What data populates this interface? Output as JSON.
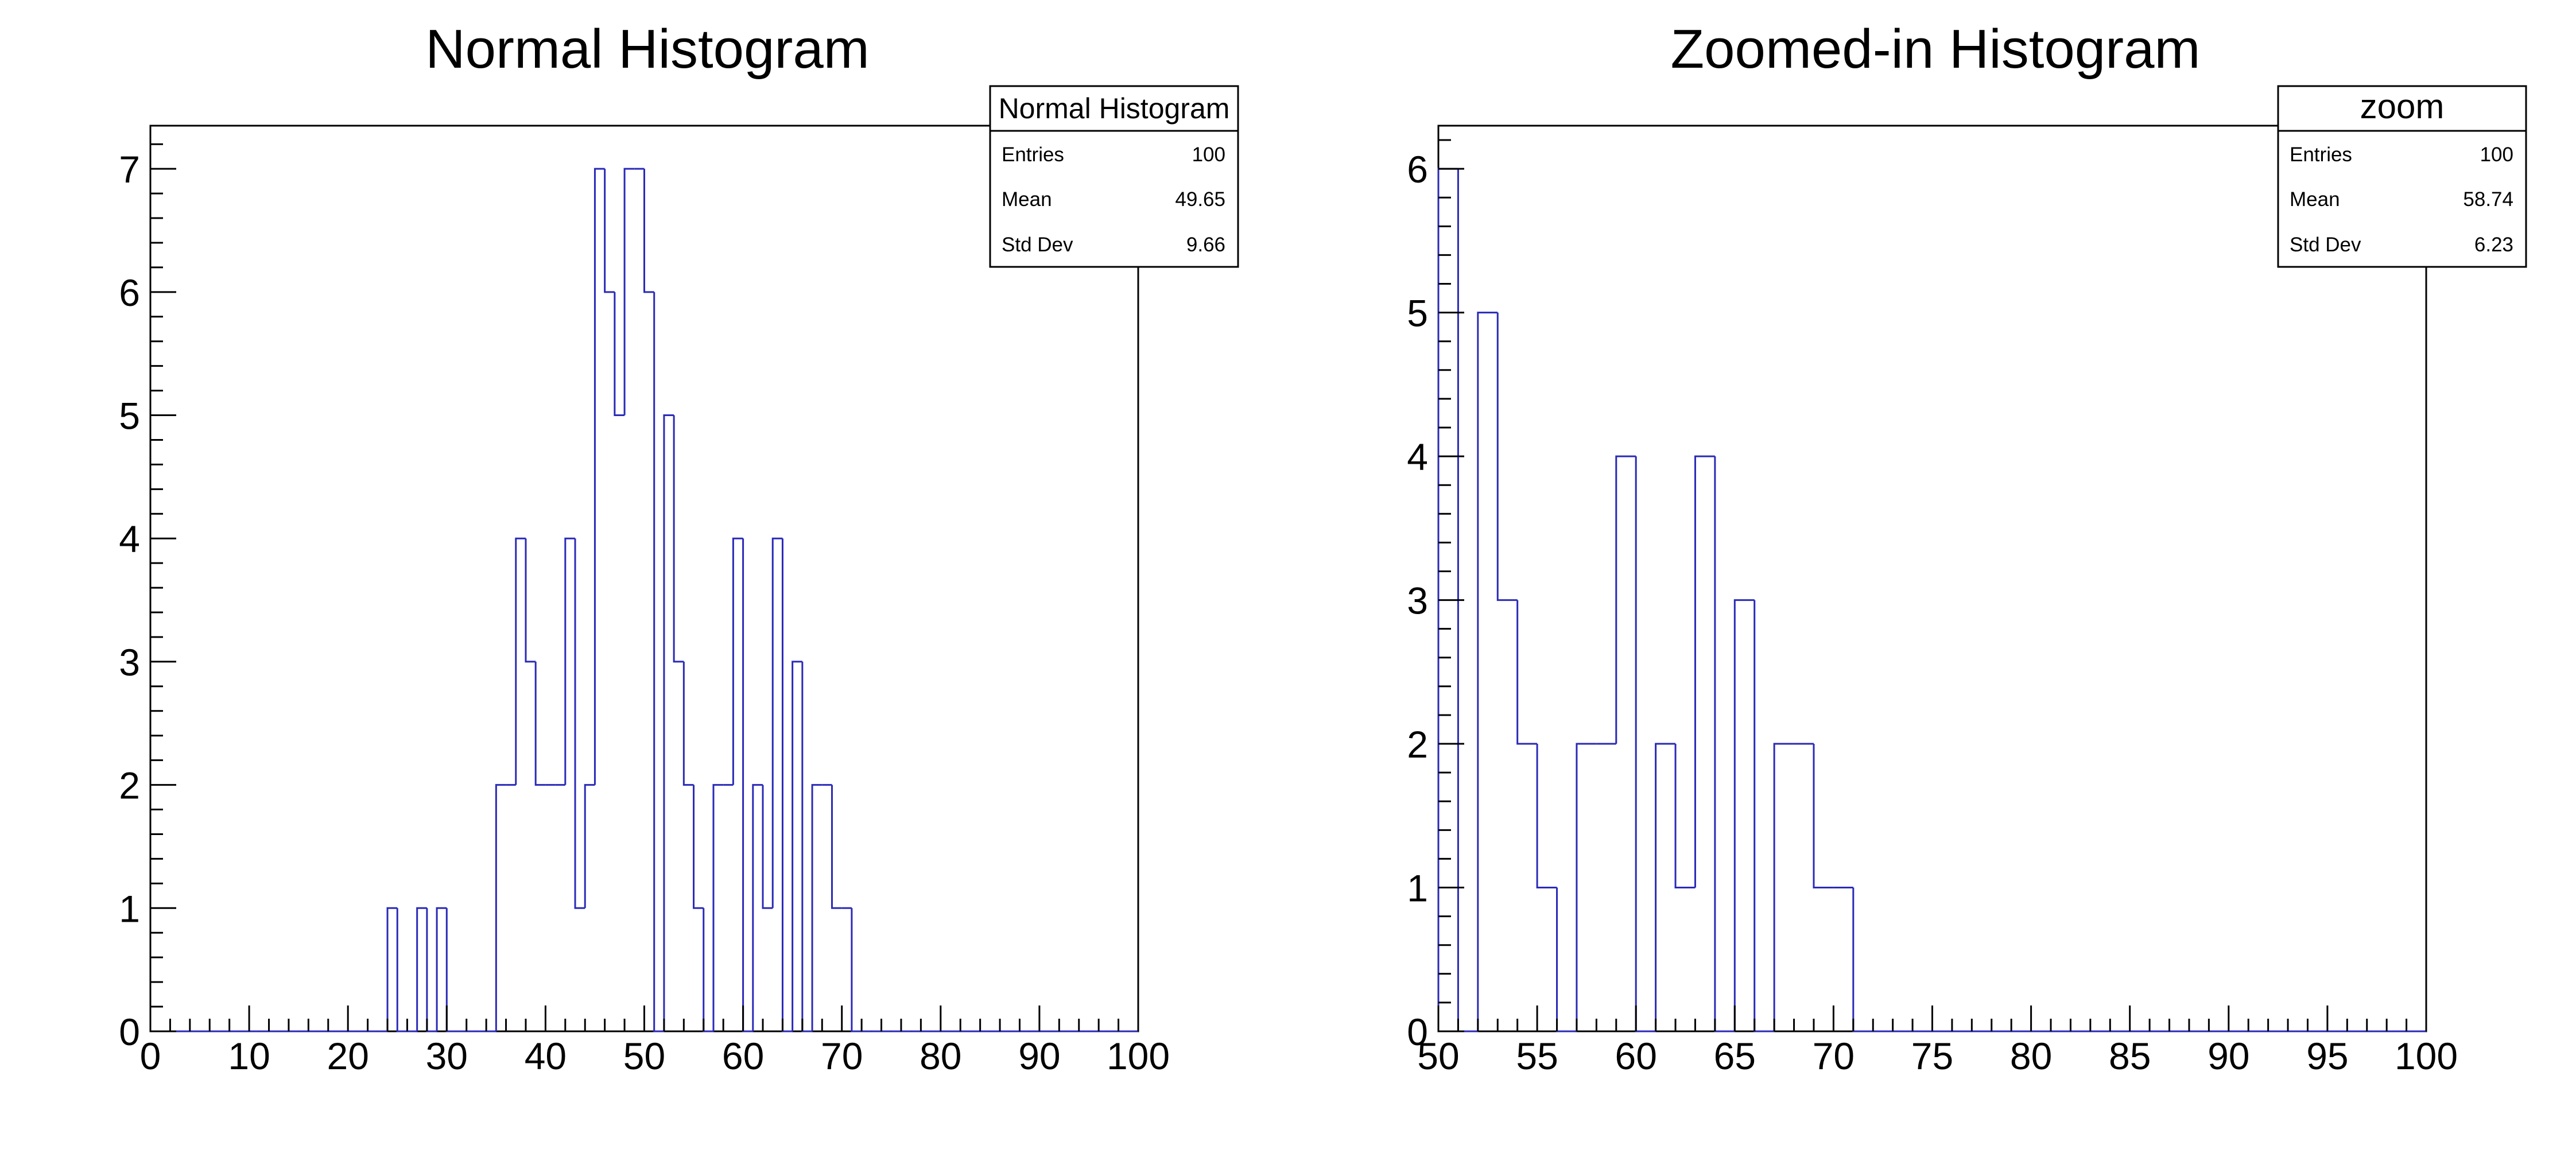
{
  "chart_data": [
    {
      "type": "bar",
      "title": "Normal Histogram",
      "xlabel": "",
      "ylabel": "",
      "xlim": [
        0,
        100
      ],
      "ylim": [
        0,
        7.35
      ],
      "bin_width": 1,
      "x_tick_labels": [
        "0",
        "10",
        "20",
        "30",
        "40",
        "50",
        "60",
        "70",
        "80",
        "90",
        "100"
      ],
      "x_major_step": 10,
      "x_minor_step": 2,
      "y_tick_labels": [
        "0",
        "1",
        "2",
        "3",
        "4",
        "5",
        "6",
        "7"
      ],
      "y_minor_step": 0.2,
      "values": [
        0,
        0,
        0,
        0,
        0,
        0,
        0,
        0,
        0,
        0,
        0,
        0,
        0,
        0,
        0,
        0,
        0,
        0,
        0,
        0,
        0,
        0,
        0,
        0,
        1,
        0,
        0,
        1,
        0,
        1,
        0,
        0,
        0,
        0,
        0,
        2,
        2,
        4,
        3,
        2,
        2,
        2,
        4,
        1,
        2,
        7,
        6,
        5,
        7,
        7,
        6,
        0,
        5,
        3,
        2,
        1,
        0,
        2,
        2,
        4,
        0,
        2,
        1,
        4,
        0,
        3,
        0,
        2,
        2,
        1,
        1,
        0,
        0,
        0,
        0,
        0,
        0,
        0,
        0,
        0,
        0,
        0,
        0,
        0,
        0,
        0,
        0,
        0,
        0,
        0,
        0,
        0,
        0,
        0,
        0,
        0,
        0,
        0,
        0,
        0
      ],
      "line_color": "#2a2ab8",
      "stats": {
        "name": "Normal Histogram",
        "rows": [
          {
            "label": "Entries",
            "value": "100"
          },
          {
            "label": "Mean",
            "value": "49.65"
          },
          {
            "label": "Std Dev",
            "value": "9.66"
          }
        ]
      },
      "legend_placement": "top-right"
    },
    {
      "type": "bar",
      "title": "Zoomed-in Histogram",
      "xlabel": "",
      "ylabel": "",
      "xlim": [
        50,
        100
      ],
      "ylim": [
        0,
        6.3
      ],
      "bin_width": 1,
      "x_tick_labels": [
        "50",
        "55",
        "60",
        "65",
        "70",
        "75",
        "80",
        "85",
        "90",
        "95",
        "100"
      ],
      "x_major_step": 5,
      "x_minor_step": 1,
      "y_tick_labels": [
        "0",
        "1",
        "2",
        "3",
        "4",
        "5",
        "6"
      ],
      "y_minor_step": 0.2,
      "values": [
        6,
        0,
        5,
        3,
        2,
        1,
        0,
        2,
        2,
        4,
        0,
        2,
        1,
        4,
        0,
        3,
        0,
        2,
        2,
        1,
        1,
        0,
        0,
        0,
        0,
        0,
        0,
        0,
        0,
        0,
        0,
        0,
        0,
        0,
        0,
        0,
        0,
        0,
        0,
        0,
        0,
        0,
        0,
        0,
        0,
        0,
        0,
        0,
        0,
        0
      ],
      "line_color": "#2a2ab8",
      "stats": {
        "name": "zoom",
        "rows": [
          {
            "label": "Entries",
            "value": "100"
          },
          {
            "label": "Mean",
            "value": "58.74"
          },
          {
            "label": "Std Dev",
            "value": "6.23"
          }
        ]
      },
      "legend_placement": "top-right"
    }
  ]
}
